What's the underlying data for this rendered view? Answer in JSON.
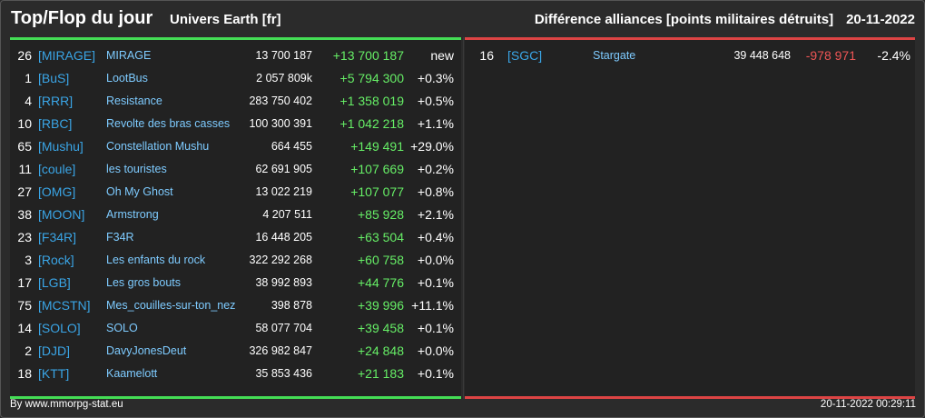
{
  "header": {
    "title": "Top/Flop du jour",
    "subtitle": "Univers Earth [fr]",
    "right_title": "Différence alliances [points militaires détruits]",
    "date": "20-11-2022"
  },
  "top": [
    {
      "rank": "26",
      "tag": "[MIRAGE]",
      "name": "MIRAGE",
      "points": "13 700 187",
      "diff": "+13 700 187",
      "pct": "new"
    },
    {
      "rank": "1",
      "tag": "[BuS]",
      "name": "LootBus",
      "points": "2 057 809k",
      "diff": "+5 794 300",
      "pct": "+0.3%"
    },
    {
      "rank": "4",
      "tag": "[RRR]",
      "name": "Resistance",
      "points": "283 750 402",
      "diff": "+1 358 019",
      "pct": "+0.5%"
    },
    {
      "rank": "10",
      "tag": "[RBC]",
      "name": "Revolte des bras casses",
      "points": "100 300 391",
      "diff": "+1 042 218",
      "pct": "+1.1%"
    },
    {
      "rank": "65",
      "tag": "[Mushu]",
      "name": "Constellation Mushu",
      "points": "664 455",
      "diff": "+149 491",
      "pct": "+29.0%"
    },
    {
      "rank": "11",
      "tag": "[coule]",
      "name": "les touristes",
      "points": "62 691 905",
      "diff": "+107 669",
      "pct": "+0.2%"
    },
    {
      "rank": "27",
      "tag": "[OMG]",
      "name": "Oh My Ghost",
      "points": "13 022 219",
      "diff": "+107 077",
      "pct": "+0.8%"
    },
    {
      "rank": "38",
      "tag": "[MOON]",
      "name": "Armstrong",
      "points": "4 207 511",
      "diff": "+85 928",
      "pct": "+2.1%"
    },
    {
      "rank": "23",
      "tag": "[F34R]",
      "name": "F34R",
      "points": "16 448 205",
      "diff": "+63 504",
      "pct": "+0.4%"
    },
    {
      "rank": "3",
      "tag": "[Rock]",
      "name": "Les enfants du rock",
      "points": "322 292 268",
      "diff": "+60 758",
      "pct": "+0.0%"
    },
    {
      "rank": "17",
      "tag": "[LGB]",
      "name": "Les gros bouts",
      "points": "38 992 893",
      "diff": "+44 776",
      "pct": "+0.1%"
    },
    {
      "rank": "75",
      "tag": "[MCSTN]",
      "name": "Mes_couilles-sur-ton_nez",
      "points": "398 878",
      "diff": "+39 996",
      "pct": "+11.1%"
    },
    {
      "rank": "14",
      "tag": "[SOLO]",
      "name": "SOLO",
      "points": "58 077 704",
      "diff": "+39 458",
      "pct": "+0.1%"
    },
    {
      "rank": "2",
      "tag": "[DJD]",
      "name": "DavyJonesDeut",
      "points": "326 982 847",
      "diff": "+24 848",
      "pct": "+0.0%"
    },
    {
      "rank": "18",
      "tag": "[KTT]",
      "name": "Kaamelott",
      "points": "35 853 436",
      "diff": "+21 183",
      "pct": "+0.1%"
    }
  ],
  "flop": [
    {
      "rank": "16",
      "tag": "[SGC]",
      "name": "Stargate",
      "points": "39 448 648",
      "diff": "-978 971",
      "pct": "-2.4%"
    }
  ],
  "footer": {
    "left": "By www.mmorpg-stat.eu",
    "right": "20-11-2022 00:29:11"
  },
  "colors": {
    "top_accent": "#44dd55",
    "flop_accent": "#dd4444",
    "tag": "#3aa5e6",
    "name": "#7ecbff",
    "positive": "#66ee66",
    "negative": "#ee5555",
    "background": "#2b2b2b"
  }
}
